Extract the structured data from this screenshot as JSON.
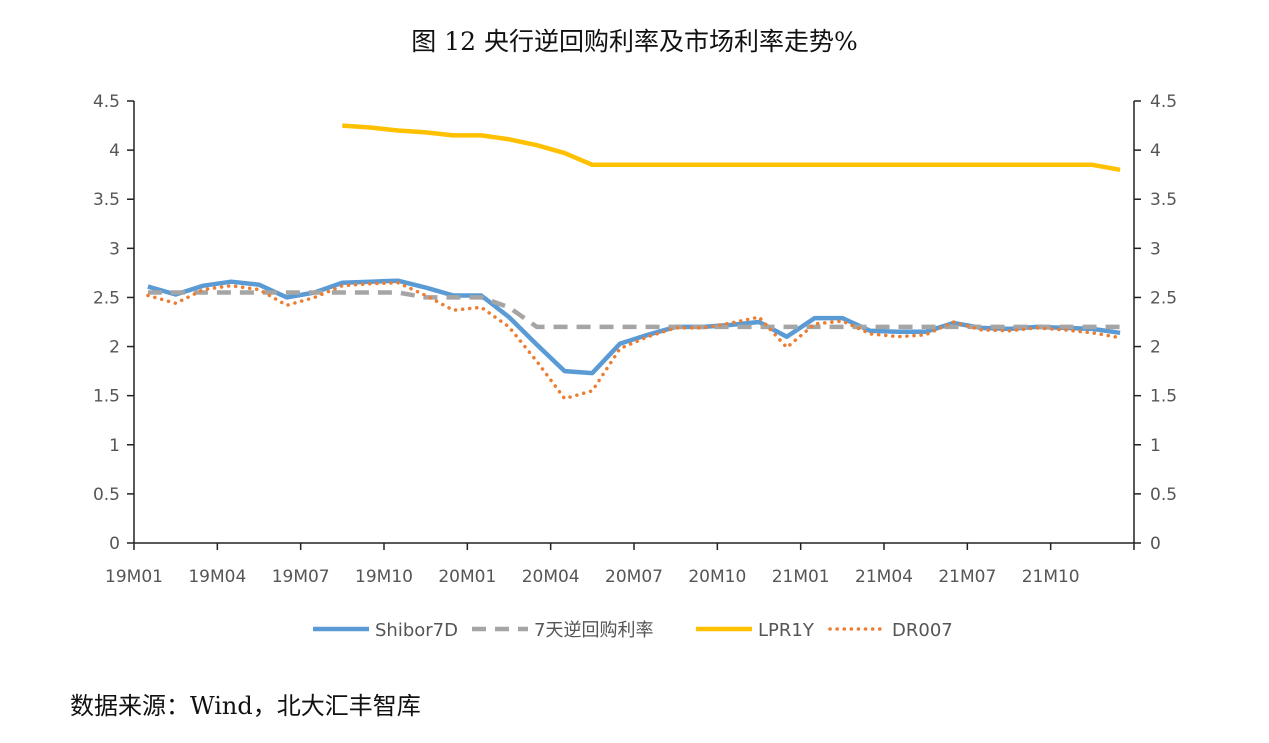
{
  "title": "图 12 央行逆回购利率及市场利率走势%",
  "source": "数据来源：Wind，北大汇丰智库",
  "chart_data": {
    "type": "line",
    "y_ticks": [
      "0",
      "0.5",
      "1",
      "1.5",
      "2",
      "2.5",
      "3",
      "3.5",
      "4",
      "4.5"
    ],
    "ylim": [
      0,
      4.5
    ],
    "y2_ticks": [
      "0",
      "0.5",
      "1",
      "1.5",
      "2",
      "2.5",
      "3",
      "3.5",
      "4",
      "4.5"
    ],
    "y2lim": [
      0,
      4.5
    ],
    "x_tick_labels": [
      "19M01",
      "19M04",
      "19M07",
      "19M10",
      "20M01",
      "20M04",
      "20M07",
      "20M10",
      "21M01",
      "21M04",
      "21M07",
      "21M10"
    ],
    "x": [
      "19M01",
      "19M02",
      "19M03",
      "19M04",
      "19M05",
      "19M06",
      "19M07",
      "19M08",
      "19M09",
      "19M10",
      "19M11",
      "19M12",
      "20M01",
      "20M02",
      "20M03",
      "20M04",
      "20M05",
      "20M06",
      "20M07",
      "20M08",
      "20M09",
      "20M10",
      "20M11",
      "20M12",
      "21M01",
      "21M02",
      "21M03",
      "21M04",
      "21M05",
      "21M06",
      "21M07",
      "21M08",
      "21M09",
      "21M10",
      "21M11",
      "21M12"
    ],
    "grid": false,
    "legend_position": "bottom",
    "series": [
      {
        "name": "Shibor7D",
        "color": "#5b9bd5",
        "style": "solid",
        "values": [
          2.61,
          2.53,
          2.62,
          2.66,
          2.63,
          2.5,
          2.55,
          2.65,
          2.66,
          2.67,
          2.6,
          2.52,
          2.52,
          2.3,
          2.02,
          1.75,
          1.73,
          2.03,
          2.12,
          2.2,
          2.2,
          2.22,
          2.25,
          2.1,
          2.29,
          2.29,
          2.16,
          2.15,
          2.15,
          2.24,
          2.19,
          2.18,
          2.2,
          2.19,
          2.18,
          2.14
        ]
      },
      {
        "name": "7天逆回购利率",
        "color": "#a5a5a5",
        "style": "dashed",
        "values": [
          2.55,
          2.55,
          2.55,
          2.55,
          2.55,
          2.55,
          2.55,
          2.55,
          2.55,
          2.55,
          2.5,
          2.5,
          2.5,
          2.4,
          2.2,
          2.2,
          2.2,
          2.2,
          2.2,
          2.2,
          2.2,
          2.2,
          2.2,
          2.2,
          2.2,
          2.2,
          2.2,
          2.2,
          2.2,
          2.2,
          2.2,
          2.2,
          2.2,
          2.2,
          2.2,
          2.2
        ]
      },
      {
        "name": "LPR1Y",
        "color": "#ffc000",
        "style": "solid",
        "values": [
          null,
          null,
          null,
          null,
          null,
          null,
          null,
          4.25,
          4.23,
          4.2,
          4.18,
          4.15,
          4.15,
          4.11,
          4.05,
          3.97,
          3.85,
          3.85,
          3.85,
          3.85,
          3.85,
          3.85,
          3.85,
          3.85,
          3.85,
          3.85,
          3.85,
          3.85,
          3.85,
          3.85,
          3.85,
          3.85,
          3.85,
          3.85,
          3.85,
          3.8
        ]
      },
      {
        "name": "DR007",
        "color": "#ed7d31",
        "style": "dotted",
        "values": [
          2.52,
          2.44,
          2.58,
          2.62,
          2.58,
          2.42,
          2.5,
          2.62,
          2.64,
          2.65,
          2.52,
          2.37,
          2.4,
          2.2,
          1.85,
          1.47,
          1.55,
          1.98,
          2.1,
          2.19,
          2.19,
          2.24,
          2.3,
          1.99,
          2.23,
          2.26,
          2.13,
          2.1,
          2.12,
          2.25,
          2.17,
          2.16,
          2.19,
          2.17,
          2.14,
          2.09
        ]
      }
    ]
  }
}
